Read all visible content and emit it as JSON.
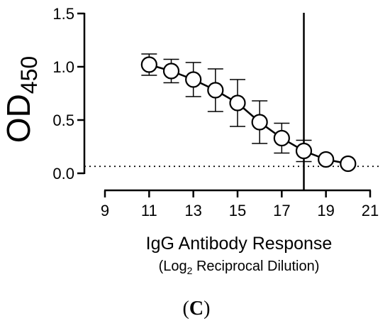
{
  "chart_data": {
    "type": "line",
    "ylabel_main": "OD",
    "ylabel_sub": "450",
    "xlabel_line1": "IgG Antibody Response",
    "xlabel_line2_pre": "(Log",
    "xlabel_line2_sub": "2",
    "xlabel_line2_post": " Reciprocal Dilution)",
    "panel_label_open": "(",
    "panel_label_letter": "C",
    "panel_label_close": ")",
    "xlim": [
      9,
      21
    ],
    "ylim": [
      0,
      1.5
    ],
    "xticks": [
      9,
      11,
      13,
      15,
      17,
      19,
      21
    ],
    "xtick_labels": [
      "9",
      "11",
      "13",
      "15",
      "17",
      "19",
      "21"
    ],
    "yticks": [
      0,
      0.5,
      1.0,
      1.5
    ],
    "ytick_labels": [
      "0.0",
      "0.5",
      "1.0",
      "1.5"
    ],
    "series": [
      {
        "x": [
          11,
          12,
          13,
          14,
          15,
          16,
          17,
          18,
          19,
          20
        ],
        "y": [
          1.02,
          0.96,
          0.88,
          0.78,
          0.66,
          0.48,
          0.33,
          0.21,
          0.13,
          0.09
        ],
        "err": [
          0.1,
          0.11,
          0.16,
          0.2,
          0.22,
          0.2,
          0.14,
          0.1,
          0.0,
          0.0
        ]
      }
    ],
    "cutoff_y": 0.065,
    "vline_x": 18
  }
}
